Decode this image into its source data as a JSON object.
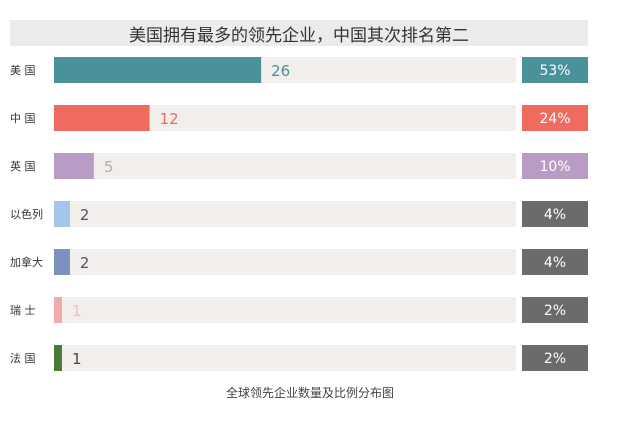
{
  "chart_data": {
    "type": "bar",
    "orientation": "horizontal",
    "title": "美国拥有最多的领先企业，中国其次排名第二",
    "caption": "全球领先企业数量及比例分布图",
    "categories": [
      "美 国",
      "中 国",
      "英 国",
      "以色列",
      "加拿大",
      "瑞 士",
      "法 国"
    ],
    "values": [
      26,
      12,
      5,
      2,
      2,
      1,
      1
    ],
    "value_labels": [
      "26",
      "12",
      "5",
      "2",
      "2",
      "1",
      "1"
    ],
    "percent_labels": [
      "53%",
      "24%",
      "10%",
      "4%",
      "4%",
      "2%",
      "2%"
    ],
    "xlim": [
      0,
      58
    ],
    "colors": [
      "#4a9199",
      "#ef6b60",
      "#b99cc5",
      "#a3c6e8",
      "#7d90c0",
      "#f2aaa8",
      "#4b7a36"
    ],
    "value_label_colors": [
      "#4a9199",
      "#ef6b60",
      "#b8a8b8",
      "#4a5566",
      "#4a5566",
      "#f0c0c0",
      "#4b4b3a"
    ],
    "percent_box_colors": [
      "#4a9199",
      "#ef6b60",
      "#b99cc5",
      "#6b6b6b",
      "#6b6b6b",
      "#6b6b6b",
      "#6b6b6b"
    ],
    "track_color": "#f1eeec",
    "grid": false,
    "legend": "none"
  }
}
